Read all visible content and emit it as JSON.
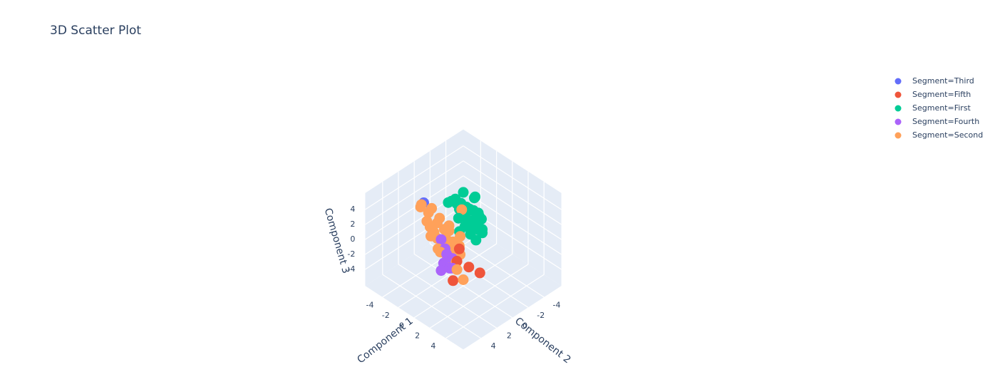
{
  "chart_data": {
    "type": "scatter",
    "title": "3D Scatter Plot",
    "axes": {
      "x": {
        "label": "Component 1",
        "ticks": [
          -4,
          -2,
          0,
          2,
          4
        ],
        "range": [
          -5,
          5
        ]
      },
      "y": {
        "label": "Component 2",
        "ticks": [
          -4,
          -2,
          0,
          2,
          4
        ],
        "range": [
          -5,
          5
        ]
      },
      "z": {
        "label": "Component 3",
        "ticks": [
          -4,
          -2,
          0,
          2,
          4
        ],
        "range": [
          -5,
          5
        ]
      }
    },
    "grid": true,
    "legend_position": "top-right",
    "series": [
      {
        "name": "Segment=Third",
        "color": "#636efa",
        "points": [
          [
            -3.6,
            1.4,
            3.4
          ]
        ]
      },
      {
        "name": "Segment=Fifth",
        "color": "#ef553b",
        "points": [
          [
            1.4,
            1.9,
            1.0
          ],
          [
            2.6,
            1.9,
            -0.6
          ],
          [
            2.7,
            0.6,
            -2.2
          ],
          [
            2.2,
            3.5,
            -1.6
          ],
          [
            1.5,
            2.3,
            -0.3
          ]
        ]
      },
      {
        "name": "Segment=First",
        "color": "#00cc96",
        "points": [
          [
            -2.4,
            -2.4,
            3.0
          ],
          [
            -1.6,
            -3.0,
            2.4
          ],
          [
            -1.5,
            -1.9,
            2.0
          ],
          [
            -2.0,
            -1.7,
            2.3
          ],
          [
            -1.4,
            -2.0,
            1.5
          ],
          [
            -1.0,
            -2.3,
            1.6
          ],
          [
            -0.6,
            -2.3,
            1.2
          ],
          [
            -0.4,
            -2.7,
            0.6
          ],
          [
            -1.2,
            -1.5,
            1.1
          ],
          [
            -0.7,
            -1.8,
            0.8
          ],
          [
            -0.9,
            -2.8,
            1.0
          ],
          [
            -0.3,
            -2.1,
            0.2
          ],
          [
            0.0,
            -2.4,
            -0.3
          ],
          [
            -0.6,
            -1.4,
            0.4
          ],
          [
            -1.6,
            -1.1,
            2.2
          ],
          [
            -1.9,
            -1.1,
            2.7
          ],
          [
            -2.4,
            -1.4,
            2.8
          ],
          [
            -2.3,
            -0.8,
            3.0
          ],
          [
            -1.2,
            -0.6,
            1.6
          ],
          [
            -0.2,
            -1.1,
            -0.2
          ],
          [
            0.5,
            -1.1,
            -0.5
          ],
          [
            1.0,
            -1.4,
            0.6
          ],
          [
            0.2,
            -1.7,
            0.3
          ],
          [
            -0.8,
            -0.3,
            0.3
          ],
          [
            -0.5,
            -0.7,
            0.9
          ],
          [
            -1.8,
            -3.3,
            2.2
          ],
          [
            -1.9,
            -2.7,
            0.9
          ],
          [
            -1.0,
            -3.0,
            0.4
          ],
          [
            -2.6,
            -2.0,
            1.6
          ],
          [
            -2.8,
            -0.9,
            2.4
          ]
        ]
      },
      {
        "name": "Segment=Fourth",
        "color": "#ab63fa",
        "points": [
          [
            -0.3,
            2.5,
            1.5
          ],
          [
            0.7,
            3.2,
            -0.5
          ],
          [
            0.9,
            3.7,
            -1.0
          ],
          [
            1.8,
            3.2,
            -0.4
          ],
          [
            1.3,
            3.0,
            -0.9
          ],
          [
            0.6,
            2.7,
            0.3
          ],
          [
            0.2,
            2.5,
            0.6
          ],
          [
            1.0,
            2.4,
            -0.2
          ]
        ]
      },
      {
        "name": "Segment=Second",
        "color": "#ffa15a",
        "points": [
          [
            -2.8,
            2.6,
            4.2
          ],
          [
            -2.4,
            1.6,
            3.6
          ],
          [
            -2.7,
            1.7,
            2.9
          ],
          [
            -2.4,
            2.2,
            2.3
          ],
          [
            -1.9,
            1.1,
            2.3
          ],
          [
            -1.8,
            1.5,
            2.0
          ],
          [
            -1.1,
            1.3,
            1.5
          ],
          [
            -1.6,
            2.1,
            1.3
          ],
          [
            -2.0,
            2.2,
            1.8
          ],
          [
            -0.6,
            2.1,
            1.0
          ],
          [
            -0.2,
            1.7,
            0.8
          ],
          [
            -1.1,
            2.2,
            0.9
          ],
          [
            0.1,
            2.1,
            0.4
          ],
          [
            0.5,
            2.6,
            0.0
          ],
          [
            -0.4,
            2.8,
            0.4
          ],
          [
            0.1,
            1.4,
            0.7
          ],
          [
            -0.3,
            1.9,
            1.2
          ],
          [
            0.6,
            1.8,
            0.0
          ],
          [
            0.8,
            1.4,
            0.1
          ],
          [
            1.2,
            1.6,
            -0.1
          ],
          [
            1.4,
            2.3,
            -0.5
          ],
          [
            0.9,
            2.4,
            -0.3
          ],
          [
            2.1,
            2.9,
            -0.6
          ],
          [
            2.9,
            2.9,
            -1.4
          ],
          [
            0.3,
            0.7,
            1.1
          ],
          [
            -1.4,
            -1.2,
            2.2
          ],
          [
            -1.0,
            0.8,
            1.7
          ],
          [
            -3.2,
            2.1,
            3.9
          ],
          [
            -1.5,
            2.6,
            1.2
          ],
          [
            0.0,
            2.9,
            0.3
          ],
          [
            0.6,
            1.1,
            0.3
          ],
          [
            -0.8,
            1.0,
            1.3
          ]
        ]
      }
    ]
  }
}
